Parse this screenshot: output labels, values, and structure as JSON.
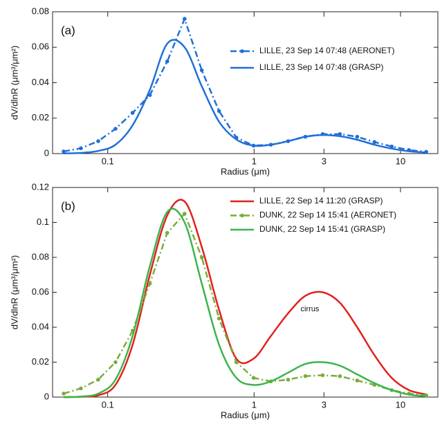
{
  "chart_data": [
    {
      "type": "line",
      "annotation": "(a)",
      "xlabel": "Radius (μm)",
      "ylabel": "dV/dlnR (μm³/μm²)",
      "xscale": "log",
      "xlim": [
        0.042,
        18
      ],
      "xticks": [
        0.1,
        1,
        3,
        10
      ],
      "ylim": [
        0,
        0.08
      ],
      "yticks": [
        0,
        0.02,
        0.04,
        0.06,
        0.08
      ],
      "legend": "upper right",
      "x": [
        0.05,
        0.0656,
        0.0861,
        0.113,
        0.148,
        0.194,
        0.255,
        0.335,
        0.439,
        0.576,
        0.756,
        0.992,
        1.302,
        1.708,
        2.241,
        2.94,
        3.857,
        5.061,
        6.641,
        8.713,
        11.43,
        15
      ],
      "series": [
        {
          "name": "LILLE, 23 Sep 14 07:48 (AERONET)",
          "color": "#1f6fd8",
          "linestyle": "dashdot",
          "markers": true,
          "values": [
            0.0012,
            0.003,
            0.007,
            0.014,
            0.023,
            0.033,
            0.052,
            0.076,
            0.047,
            0.024,
            0.009,
            0.0045,
            0.005,
            0.007,
            0.0095,
            0.011,
            0.011,
            0.0095,
            0.0065,
            0.004,
            0.002,
            0.001
          ]
        },
        {
          "name": "LILLE, 23 Sep 14 07:48 (GRASP)",
          "color": "#1f6fd8",
          "linestyle": "solid",
          "markers": false,
          "values": [
            0.0001,
            0.0004,
            0.0015,
            0.005,
            0.016,
            0.036,
            0.062,
            0.06,
            0.038,
            0.018,
            0.008,
            0.0045,
            0.005,
            0.007,
            0.0095,
            0.0105,
            0.0098,
            0.0078,
            0.005,
            0.0028,
            0.0013,
            0.0006
          ]
        }
      ]
    },
    {
      "type": "line",
      "annotation": "(b)",
      "xlabel": "Radius (μm)",
      "ylabel": "dV/dlnR (μm³/μm²)",
      "note": "cirrus",
      "xscale": "log",
      "xlim": [
        0.042,
        18
      ],
      "xticks": [
        0.1,
        1,
        3,
        10
      ],
      "ylim": [
        0,
        0.12
      ],
      "yticks": [
        0,
        0.02,
        0.04,
        0.06,
        0.08,
        0.1,
        0.12
      ],
      "legend": "upper right",
      "x": [
        0.05,
        0.0656,
        0.0861,
        0.113,
        0.148,
        0.194,
        0.255,
        0.335,
        0.439,
        0.576,
        0.756,
        0.992,
        1.302,
        1.708,
        2.241,
        2.94,
        3.857,
        5.061,
        6.641,
        8.713,
        11.43,
        15
      ],
      "series": [
        {
          "name": "LILLE, 22 Sep 14 11:20 (GRASP)",
          "color": "#e2201c",
          "linestyle": "solid",
          "markers": false,
          "values": [
            0,
            0.0002,
            0.001,
            0.007,
            0.03,
            0.07,
            0.104,
            0.112,
            0.086,
            0.05,
            0.022,
            0.022,
            0.035,
            0.048,
            0.058,
            0.06,
            0.054,
            0.04,
            0.024,
            0.011,
            0.004,
            0.0015
          ]
        },
        {
          "name": "DUNK, 22 Sep 14 15:41 (AERONET)",
          "color": "#79ad3a",
          "linestyle": "dashdot",
          "markers": true,
          "values": [
            0.002,
            0.005,
            0.01,
            0.02,
            0.038,
            0.065,
            0.094,
            0.105,
            0.08,
            0.045,
            0.02,
            0.011,
            0.009,
            0.01,
            0.012,
            0.0125,
            0.012,
            0.0095,
            0.007,
            0.004,
            0.002,
            0.001
          ]
        },
        {
          "name": "DUNK, 22 Sep 14 15:41 (GRASP)",
          "color": "#3cb44b",
          "linestyle": "solid",
          "markers": false,
          "values": [
            0,
            0.0003,
            0.002,
            0.01,
            0.035,
            0.075,
            0.106,
            0.1,
            0.065,
            0.03,
            0.011,
            0.007,
            0.009,
            0.014,
            0.019,
            0.02,
            0.018,
            0.013,
            0.008,
            0.004,
            0.0015,
            0.0005
          ]
        }
      ]
    }
  ]
}
